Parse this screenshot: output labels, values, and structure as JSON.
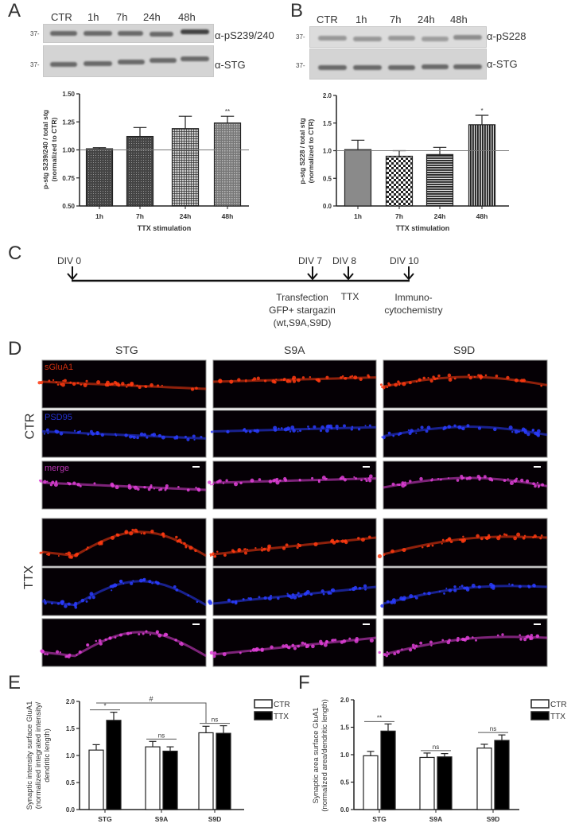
{
  "panel_labels": {
    "a": "A",
    "b": "B",
    "c": "C",
    "d": "D",
    "e": "E",
    "f": "F"
  },
  "blots": {
    "a": {
      "lanes": [
        "CTR",
        "1h",
        "7h",
        "24h",
        "48h"
      ],
      "mw": "37-",
      "top_antibody": "α-pS239/240",
      "bottom_antibody": "α-STG"
    },
    "b": {
      "lanes": [
        "CTR",
        "1h",
        "7h",
        "24h",
        "48h"
      ],
      "mw": "37-",
      "top_antibody": "α-pS228",
      "bottom_antibody": "α-STG"
    }
  },
  "timeline": {
    "events": [
      {
        "day": "DIV 0",
        "note": []
      },
      {
        "day": "DIV 7",
        "note": [
          "Transfection",
          "GFP+ stargazin",
          "(wt,S9A,S9D)"
        ]
      },
      {
        "day": "DIV 8",
        "note": [
          "TTX"
        ]
      },
      {
        "day": "DIV 10",
        "note": [
          "Immuno-",
          "cytochemistry"
        ]
      }
    ]
  },
  "micrographs": {
    "columns": [
      "STG",
      "S9A",
      "S9D"
    ],
    "conditions": [
      "CTR",
      "TTX"
    ],
    "channels": [
      "sGluA1",
      "PSD95",
      "merge"
    ],
    "colors": {
      "sGluA1": "#ff3a10",
      "PSD95": "#2a3cff",
      "merge": "#e040d8"
    }
  },
  "chart_data": [
    {
      "id": "A",
      "type": "bar",
      "categories": [
        "1h",
        "7h",
        "24h",
        "48h"
      ],
      "values": [
        1.01,
        1.12,
        1.19,
        1.24
      ],
      "errors": [
        0.01,
        0.08,
        0.11,
        0.06
      ],
      "significance": [
        "",
        "",
        "",
        "**"
      ],
      "xlabel": "TTX stimulation",
      "ylabel": [
        "p-stg S239/240 / total stg",
        "(normalized to CTR)"
      ],
      "ylim": [
        0.5,
        1.5
      ],
      "yticks": [
        "0.50",
        "0.75",
        "1.00",
        "1.25",
        "1.50"
      ],
      "reference_line": 1.0,
      "grid": false,
      "fill_patterns": [
        "dense-dots",
        "dense-dots",
        "grid",
        "fine-dots"
      ],
      "bar_color": "#555555"
    },
    {
      "id": "B",
      "type": "bar",
      "categories": [
        "1h",
        "7h",
        "24h",
        "48h"
      ],
      "values": [
        1.02,
        0.9,
        0.93,
        1.47
      ],
      "errors": [
        0.17,
        0.1,
        0.13,
        0.17
      ],
      "significance": [
        "",
        "",
        "",
        "*"
      ],
      "xlabel": "TTX stimulation",
      "ylabel": [
        "p-stg S228 / total stg",
        "(normalized to CTR)"
      ],
      "ylim": [
        0,
        2
      ],
      "yticks": [
        "0.0",
        "0.5",
        "1.0",
        "1.5",
        "2.0"
      ],
      "reference_line": 1.0,
      "grid": false,
      "fill_patterns": [
        "solid-gray",
        "checker",
        "horizontal-lines",
        "vertical-lines"
      ],
      "bar_color": "#777777"
    },
    {
      "id": "E",
      "type": "bar",
      "categories": [
        "STG",
        "S9A",
        "S9D"
      ],
      "series": [
        {
          "name": "CTR",
          "values": [
            1.1,
            1.16,
            1.42
          ],
          "errors": [
            0.1,
            0.1,
            0.12
          ],
          "color": "#ffffff"
        },
        {
          "name": "TTX",
          "values": [
            1.65,
            1.08,
            1.41
          ],
          "errors": [
            0.15,
            0.08,
            0.14
          ],
          "color": "#000000"
        }
      ],
      "annotations": [
        {
          "text": "*",
          "between": "STG CTR-TTX"
        },
        {
          "text": "ns",
          "between": "S9A CTR-TTX"
        },
        {
          "text": "ns",
          "between": "S9D CTR-TTX"
        },
        {
          "text": "#",
          "between": "STG CTR - S9D CTR"
        }
      ],
      "ylabel": [
        "Synaptic intensity surface GluA1",
        "(normalized integrated intensity/",
        "dendritic length)"
      ],
      "ylim": [
        0,
        2
      ],
      "yticks": [
        "0.0",
        "0.5",
        "1.0",
        "1.5",
        "2.0"
      ],
      "legend": "right",
      "grid": false
    },
    {
      "id": "F",
      "type": "bar",
      "categories": [
        "STG",
        "S9A",
        "S9D"
      ],
      "series": [
        {
          "name": "CTR",
          "values": [
            0.98,
            0.95,
            1.12
          ],
          "errors": [
            0.08,
            0.08,
            0.07
          ],
          "color": "#ffffff"
        },
        {
          "name": "TTX",
          "values": [
            1.43,
            0.96,
            1.26
          ],
          "errors": [
            0.13,
            0.06,
            0.1
          ],
          "color": "#000000"
        }
      ],
      "annotations": [
        {
          "text": "**",
          "between": "STG CTR-TTX"
        },
        {
          "text": "ns",
          "between": "S9A CTR-TTX"
        },
        {
          "text": "ns",
          "between": "S9D CTR-TTX"
        }
      ],
      "ylabel": [
        "Synaptic area surface GluA1",
        "(normalized area/dendritic length)"
      ],
      "ylim": [
        0,
        2
      ],
      "yticks": [
        "0.0",
        "0.5",
        "1.0",
        "1.5",
        "2.0"
      ],
      "legend": "right",
      "grid": false
    }
  ]
}
